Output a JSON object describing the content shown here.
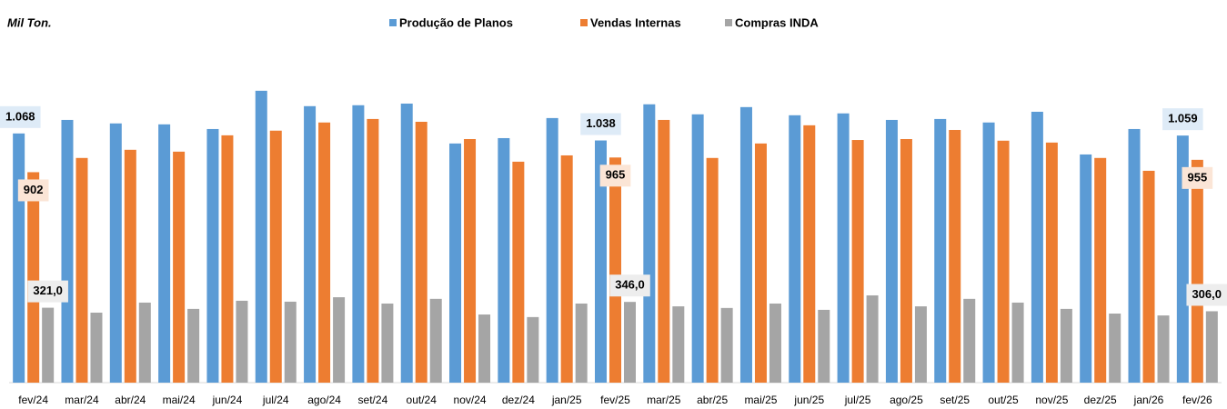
{
  "chart_data": {
    "type": "bar",
    "title": "Mil Ton.",
    "categories": [
      "fev/24",
      "mar/24",
      "abr/24",
      "mai/24",
      "jun/24",
      "jul/24",
      "ago/24",
      "set/24",
      "out/24",
      "nov/24",
      "dez/24",
      "jan/25",
      "fev/25",
      "mar/25",
      "abr/25",
      "mai/25",
      "jun/25",
      "jul/25",
      "ago/25",
      "set/25",
      "out/25",
      "nov/25",
      "dez/25",
      "jan/26",
      "fev/26"
    ],
    "series": [
      {
        "name": "Produção de Planos",
        "color": "#5b9bd5",
        "label_bg": "#deebf7",
        "values": [
          1068,
          1126,
          1111,
          1107,
          1087,
          1251,
          1185,
          1189,
          1196,
          1025,
          1048,
          1134,
          1038,
          1193,
          1150,
          1181,
          1146,
          1154,
          1126,
          1130,
          1115,
          1161,
          978,
          1087,
          1059
        ],
        "value_labels": [
          "1.068",
          null,
          null,
          null,
          null,
          null,
          null,
          null,
          null,
          null,
          null,
          null,
          "1.038",
          null,
          null,
          null,
          null,
          null,
          null,
          null,
          null,
          null,
          null,
          null,
          "1.059"
        ]
      },
      {
        "name": "Vendas Internas",
        "color": "#ed7d31",
        "label_bg": "#fbe5d6",
        "values": [
          902,
          963,
          998,
          990,
          1060,
          1080,
          1115,
          1130,
          1118,
          1044,
          947,
          974,
          965,
          1126,
          963,
          1025,
          1103,
          1040,
          1044,
          1083,
          1037,
          1029,
          963,
          908,
          955
        ],
        "value_labels": [
          "902",
          null,
          null,
          null,
          null,
          null,
          null,
          null,
          null,
          null,
          null,
          null,
          "965",
          null,
          null,
          null,
          null,
          null,
          null,
          null,
          null,
          null,
          null,
          null,
          "955"
        ]
      },
      {
        "name": "Compras INDA",
        "color": "#a5a5a5",
        "label_bg": "#ededed",
        "values": [
          321,
          300,
          343,
          316,
          351,
          347,
          366,
          339,
          359,
          292,
          281,
          339,
          346,
          327,
          320,
          339,
          312,
          374,
          327,
          359,
          343,
          316,
          296,
          288,
          306
        ],
        "value_labels": [
          "321,0",
          null,
          null,
          null,
          null,
          null,
          null,
          null,
          null,
          null,
          null,
          null,
          "346,0",
          null,
          null,
          null,
          null,
          null,
          null,
          null,
          null,
          null,
          null,
          null,
          "306,0"
        ]
      }
    ],
    "ylim": [
      0,
      1640
    ]
  }
}
